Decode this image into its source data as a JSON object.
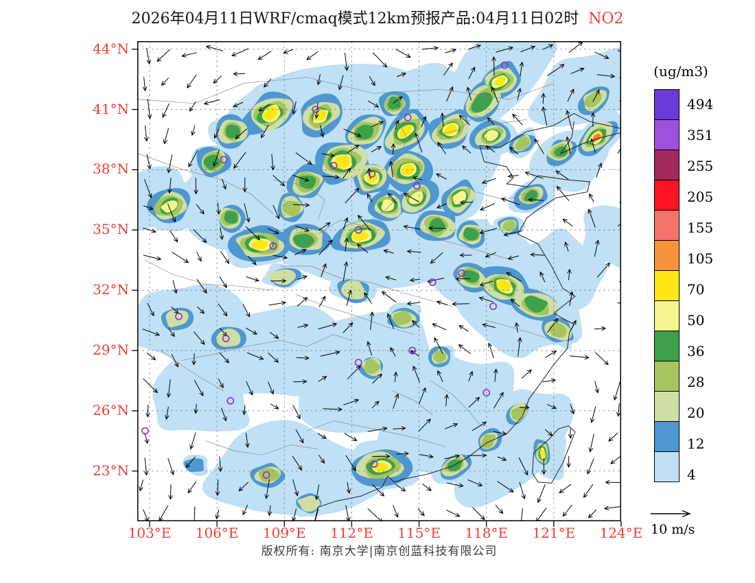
{
  "title": {
    "text": "2026年04月11日WRF/cmaq模式12km预报产品:04月11日02时",
    "species": "NO2"
  },
  "axes": {
    "lat_ticks": [
      {
        "label": "44°N",
        "value": 44
      },
      {
        "label": "41°N",
        "value": 41
      },
      {
        "label": "38°N",
        "value": 38
      },
      {
        "label": "35°N",
        "value": 35
      },
      {
        "label": "32°N",
        "value": 32
      },
      {
        "label": "29°N",
        "value": 29
      },
      {
        "label": "26°N",
        "value": 26
      },
      {
        "label": "23°N",
        "value": 23
      }
    ],
    "lon_ticks": [
      {
        "label": "103°E",
        "value": 103
      },
      {
        "label": "106°E",
        "value": 106
      },
      {
        "label": "109°E",
        "value": 109
      },
      {
        "label": "112°E",
        "value": 112
      },
      {
        "label": "115°E",
        "value": 115
      },
      {
        "label": "118°E",
        "value": 118
      },
      {
        "label": "121°E",
        "value": 121
      },
      {
        "label": "124°E",
        "value": 124
      }
    ]
  },
  "colorbar": {
    "unit": "(ug/m3)",
    "labels": [
      "494",
      "351",
      "255",
      "205",
      "155",
      "105",
      "70",
      "50",
      "36",
      "28",
      "20",
      "12",
      "4"
    ],
    "segment_colors_top_to_bottom": [
      "#6a39d9",
      "#9b51dc",
      "#a3285c",
      "#fb1322",
      "#f4736b",
      "#f6923a",
      "#ffe713",
      "#f6f68e",
      "#3da04b",
      "#a6c55e",
      "#cfdfa4",
      "#4f97d0",
      "#bfe0f5"
    ]
  },
  "wind_legend": {
    "label": "10 m/s"
  },
  "footer": {
    "text": "版权所有: 南京大学|南京创蓝科技有限公司"
  },
  "colors": {
    "label_red": "#ef3d33",
    "marker_purple": "#8b2fd6"
  },
  "map_field": {
    "levels_low_to_high": [
      "#bfe0f5",
      "#4f97d0",
      "#cfdfa4",
      "#a6c55e",
      "#3da04b",
      "#f6f68e",
      "#ffe713",
      "#f6923a",
      "#f4736b"
    ],
    "washes": [
      [
        110.5,
        39.5,
        3.6,
        1.6,
        -20
      ],
      [
        115.5,
        39.5,
        3.2,
        1.5,
        -35
      ],
      [
        107.0,
        35.8,
        2.8,
        1.4,
        0
      ],
      [
        112.5,
        34.8,
        3.0,
        1.8,
        0
      ],
      [
        117.5,
        33.5,
        2.6,
        1.3,
        20
      ],
      [
        119.0,
        31.5,
        2.4,
        1.5,
        30
      ],
      [
        104.5,
        30.2,
        2.2,
        1.2,
        0
      ],
      [
        108.5,
        29.0,
        2.6,
        1.5,
        0
      ],
      [
        113.0,
        28.0,
        2.8,
        1.4,
        0
      ],
      [
        116.5,
        25.5,
        2.6,
        1.3,
        -45
      ],
      [
        119.5,
        24.5,
        2.0,
        1.6,
        -45
      ],
      [
        110.0,
        22.8,
        2.6,
        1.6,
        0
      ],
      [
        120.8,
        23.8,
        1.4,
        0.7,
        -10
      ],
      [
        105.0,
        26.5,
        2.0,
        1.2,
        0
      ],
      [
        121.5,
        38.5,
        1.6,
        1.2,
        -40
      ],
      [
        103.5,
        36.3,
        1.6,
        1.0,
        0
      ],
      [
        118.5,
        42.5,
        2.2,
        1.6,
        -30
      ],
      [
        121.0,
        33.0,
        1.8,
        1.2,
        20
      ],
      [
        113.5,
        41.2,
        2.0,
        1.5,
        -20
      ],
      [
        122.5,
        41.8,
        1.8,
        1.4,
        -30
      ],
      [
        123.5,
        34.5,
        1.5,
        1.0,
        0
      ]
    ],
    "hotspots": [
      [
        108.4,
        40.8,
        1.0,
        7,
        1.3,
        -30
      ],
      [
        110.6,
        40.7,
        0.9,
        7,
        1.2,
        -30
      ],
      [
        106.7,
        39.9,
        0.8,
        5,
        1.0,
        0
      ],
      [
        105.8,
        38.4,
        0.8,
        5,
        1.0,
        -20
      ],
      [
        112.6,
        39.9,
        0.8,
        5,
        1.3,
        -30
      ],
      [
        111.6,
        38.4,
        1.1,
        7,
        1.2,
        -10
      ],
      [
        112.9,
        37.6,
        0.9,
        7,
        1.0,
        0
      ],
      [
        110.0,
        37.4,
        0.8,
        5,
        1.1,
        -15
      ],
      [
        109.3,
        36.1,
        0.7,
        4,
        1.0,
        0
      ],
      [
        114.4,
        39.9,
        0.9,
        7,
        1.4,
        -40
      ],
      [
        116.4,
        40.0,
        0.9,
        7,
        1.2,
        -30
      ],
      [
        114.5,
        38.0,
        1.0,
        7,
        1.1,
        -20
      ],
      [
        113.6,
        36.2,
        0.8,
        6,
        1.1,
        0
      ],
      [
        114.9,
        36.6,
        0.8,
        6,
        1.2,
        -30
      ],
      [
        117.8,
        41.4,
        0.8,
        5,
        1.5,
        -40
      ],
      [
        118.6,
        42.4,
        0.8,
        7,
        1.3,
        -35
      ],
      [
        113.9,
        41.3,
        0.7,
        5,
        1.0,
        0
      ],
      [
        103.9,
        36.2,
        0.8,
        6,
        1.3,
        -20
      ],
      [
        106.6,
        35.6,
        0.7,
        5,
        1.0,
        0
      ],
      [
        107.9,
        34.3,
        0.9,
        7,
        1.5,
        0
      ],
      [
        109.9,
        34.5,
        0.8,
        5,
        1.4,
        0
      ],
      [
        112.4,
        34.7,
        0.9,
        7,
        1.5,
        -10
      ],
      [
        115.8,
        35.2,
        0.8,
        5,
        1.2,
        0
      ],
      [
        116.8,
        36.6,
        0.8,
        6,
        1.2,
        -40
      ],
      [
        117.3,
        34.8,
        0.7,
        5,
        1.0,
        0
      ],
      [
        120.0,
        36.7,
        0.6,
        5,
        1.3,
        -20
      ],
      [
        119.0,
        35.2,
        0.5,
        4,
        1.0,
        0
      ],
      [
        118.2,
        39.7,
        0.7,
        6,
        1.3,
        -20
      ],
      [
        119.6,
        39.3,
        0.5,
        4,
        1.2,
        -30
      ],
      [
        121.3,
        38.9,
        0.6,
        5,
        1.2,
        -30
      ],
      [
        122.9,
        39.6,
        0.7,
        9,
        1.5,
        -40
      ],
      [
        122.8,
        41.5,
        0.6,
        4,
        1.3,
        -35
      ],
      [
        117.3,
        32.7,
        0.7,
        5,
        1.2,
        20
      ],
      [
        118.8,
        32.2,
        0.9,
        7,
        1.3,
        25
      ],
      [
        120.2,
        31.3,
        0.8,
        5,
        1.5,
        15
      ],
      [
        121.2,
        30.0,
        0.6,
        4,
        1.3,
        30
      ],
      [
        114.3,
        30.6,
        0.6,
        4,
        1.2,
        0
      ],
      [
        112.1,
        32.0,
        0.6,
        3,
        1.3,
        10
      ],
      [
        109.0,
        32.7,
        0.5,
        3,
        1.5,
        0
      ],
      [
        112.9,
        28.2,
        0.6,
        4,
        1.0,
        0
      ],
      [
        115.9,
        28.7,
        0.5,
        4,
        1.0,
        0
      ],
      [
        104.2,
        30.6,
        0.6,
        3,
        1.2,
        0
      ],
      [
        106.5,
        29.6,
        0.6,
        3,
        1.2,
        0
      ],
      [
        113.3,
        23.2,
        0.9,
        7,
        1.5,
        0
      ],
      [
        116.6,
        23.3,
        0.6,
        5,
        1.3,
        -30
      ],
      [
        118.1,
        24.5,
        0.5,
        4,
        1.2,
        -40
      ],
      [
        119.4,
        25.9,
        0.5,
        4,
        1.2,
        -40
      ],
      [
        120.5,
        23.9,
        0.75,
        7,
        0.5,
        -8
      ],
      [
        108.3,
        22.8,
        0.6,
        4,
        1.3,
        0
      ],
      [
        105.0,
        23.3,
        0.4,
        2,
        1.2,
        0
      ],
      [
        110.1,
        21.4,
        0.5,
        3,
        1.3,
        0
      ]
    ],
    "city_markers": [
      [
        118.8,
        43.2
      ],
      [
        110.4,
        41.0
      ],
      [
        114.5,
        40.6
      ],
      [
        106.3,
        38.5
      ],
      [
        111.2,
        38.2
      ],
      [
        112.9,
        37.8
      ],
      [
        114.9,
        37.2
      ],
      [
        108.5,
        34.2
      ],
      [
        112.3,
        35.0
      ],
      [
        115.6,
        32.4
      ],
      [
        116.9,
        32.85
      ],
      [
        118.3,
        31.2
      ],
      [
        104.3,
        30.7
      ],
      [
        106.4,
        29.6
      ],
      [
        114.7,
        29.0
      ],
      [
        112.3,
        28.4
      ],
      [
        106.6,
        26.5
      ],
      [
        118.0,
        26.9
      ],
      [
        102.8,
        25.0
      ],
      [
        108.2,
        22.8
      ],
      [
        113.0,
        23.35
      ]
    ]
  }
}
